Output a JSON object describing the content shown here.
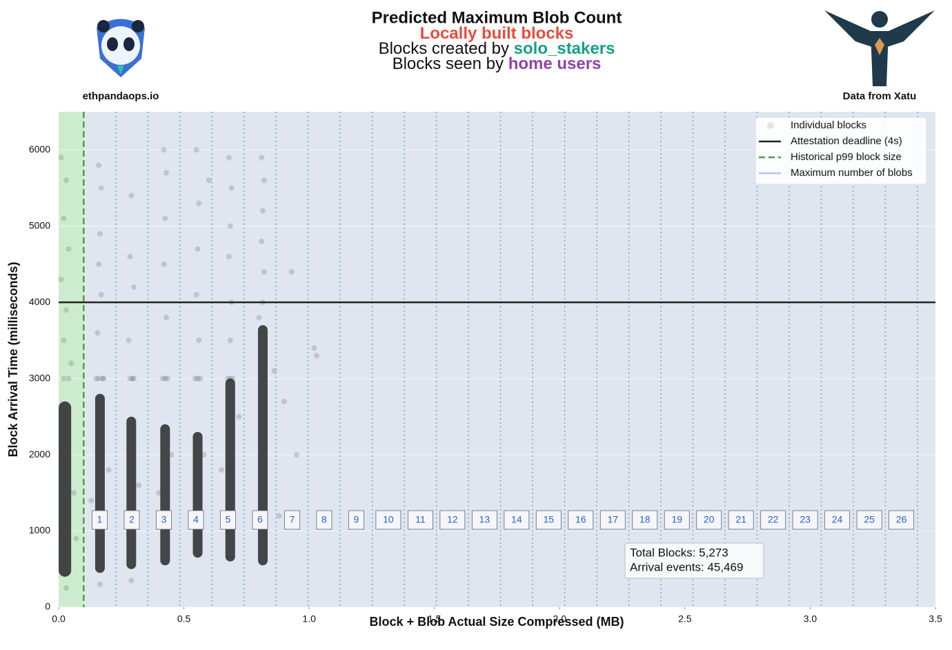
{
  "chart_data": {
    "type": "scatter",
    "title": "Predicted Maximum Blob Count",
    "subtitle_lines": [
      [
        {
          "text": "Locally built blocks",
          "color": "#e74c3c"
        }
      ],
      [
        {
          "text": "Blocks created by ",
          "color": "#111111"
        },
        {
          "text": "solo_stakers",
          "color": "#16a085"
        }
      ],
      [
        {
          "text": "Blocks seen by ",
          "color": "#111111"
        },
        {
          "text": "home users",
          "color": "#8e44ad"
        }
      ]
    ],
    "left_logo_caption": "ethpandaops.io",
    "right_logo_caption": "Data from Xatu",
    "xlabel": "Block + Blob Actual Size Compressed (MB)",
    "ylabel": "Block Arrival Time (milliseconds)",
    "xlim": [
      0,
      3.5
    ],
    "xticks": [
      {
        "value": 0,
        "label": "0.0"
      },
      0.5,
      {
        "value": 1,
        "label": "1.0"
      },
      1.5,
      {
        "value": 2,
        "label": "2.0"
      },
      2.5,
      {
        "value": 3,
        "label": "3.0"
      },
      3.5
    ],
    "ylim": [
      0,
      6500
    ],
    "yticks": [
      0,
      1000,
      2000,
      3000,
      4000,
      5000,
      6000
    ],
    "grid": true,
    "legend_position": "upper right",
    "series": [
      {
        "name": "Individual blocks",
        "color": "#333333",
        "x": [
          0.01,
          0.03,
          0.02,
          0.04,
          0.01,
          0.03,
          0.02,
          0.05,
          0.02,
          0.04,
          0.03,
          0.06,
          0.07,
          0.16,
          0.17,
          0.165,
          0.16,
          0.17,
          0.155,
          0.15,
          0.16,
          0.175,
          0.18,
          0.2,
          0.13,
          0.165,
          0.29,
          0.285,
          0.3,
          0.28,
          0.285,
          0.295,
          0.3,
          0.32,
          0.29,
          0.42,
          0.43,
          0.425,
          0.42,
          0.43,
          0.415,
          0.425,
          0.435,
          0.45,
          0.4,
          0.55,
          0.56,
          0.555,
          0.55,
          0.56,
          0.545,
          0.555,
          0.565,
          0.6,
          0.58,
          0.68,
          0.69,
          0.685,
          0.68,
          0.69,
          0.685,
          0.675,
          0.685,
          0.695,
          0.72,
          0.65,
          0.81,
          0.82,
          0.815,
          0.81,
          0.82,
          0.815,
          0.86,
          0.9,
          0.95,
          0.93,
          0.88,
          1.02,
          1.03,
          0.8
        ],
        "values": [
          5900,
          5600,
          5100,
          4700,
          4300,
          3900,
          3500,
          3200,
          3000,
          3000,
          250,
          1500,
          900,
          5800,
          5500,
          4900,
          4500,
          4100,
          3600,
          3000,
          3000,
          3000,
          3000,
          1800,
          1400,
          300,
          5400,
          4600,
          4200,
          3500,
          3000,
          3000,
          3000,
          1600,
          350,
          6000,
          5700,
          5100,
          4500,
          3800,
          3000,
          3000,
          3000,
          2000,
          1500,
          6000,
          5300,
          4700,
          4100,
          3500,
          3000,
          3000,
          3000,
          5600,
          2000,
          5900,
          5500,
          5000,
          4600,
          4000,
          3500,
          3000,
          3000,
          3000,
          2500,
          1800,
          5900,
          5600,
          5200,
          4800,
          4400,
          4000,
          3100,
          2700,
          2000,
          4400,
          1200,
          3400,
          3300,
          3800
        ],
        "density": {
          "x": [
            0.025,
            0.165,
            0.29,
            0.425,
            0.555,
            0.685,
            0.815
          ],
          "low": [
            400,
            450,
            500,
            550,
            650,
            600,
            550
          ],
          "high": [
            2700,
            2800,
            2500,
            2400,
            2300,
            3000,
            3700
          ]
        }
      },
      {
        "name": "Attestation deadline (4s)",
        "color": "#222222",
        "y": 4000
      },
      {
        "name": "Historical p99 block size",
        "color": "#4a9e4a",
        "x": 0.1
      },
      {
        "name": "Maximum number of blobs",
        "color": "#7d9ef0",
        "x": [
          0.228,
          0.356,
          0.484,
          0.612,
          0.74,
          0.868,
          0.996,
          1.124,
          1.252,
          1.38,
          1.508,
          1.636,
          1.764,
          1.892,
          2.02,
          2.148,
          2.276,
          2.404,
          2.532,
          2.66,
          2.788,
          2.916,
          3.044,
          3.172,
          3.3,
          3.428
        ],
        "labels": [
          1,
          2,
          3,
          4,
          5,
          6,
          7,
          8,
          9,
          10,
          11,
          12,
          13,
          14,
          15,
          16,
          17,
          18,
          19,
          20,
          21,
          22,
          23,
          24,
          25,
          26
        ]
      }
    ],
    "annotation_lines": [
      "Total Blocks: 5,273",
      "Arrival events: 45,469"
    ]
  }
}
